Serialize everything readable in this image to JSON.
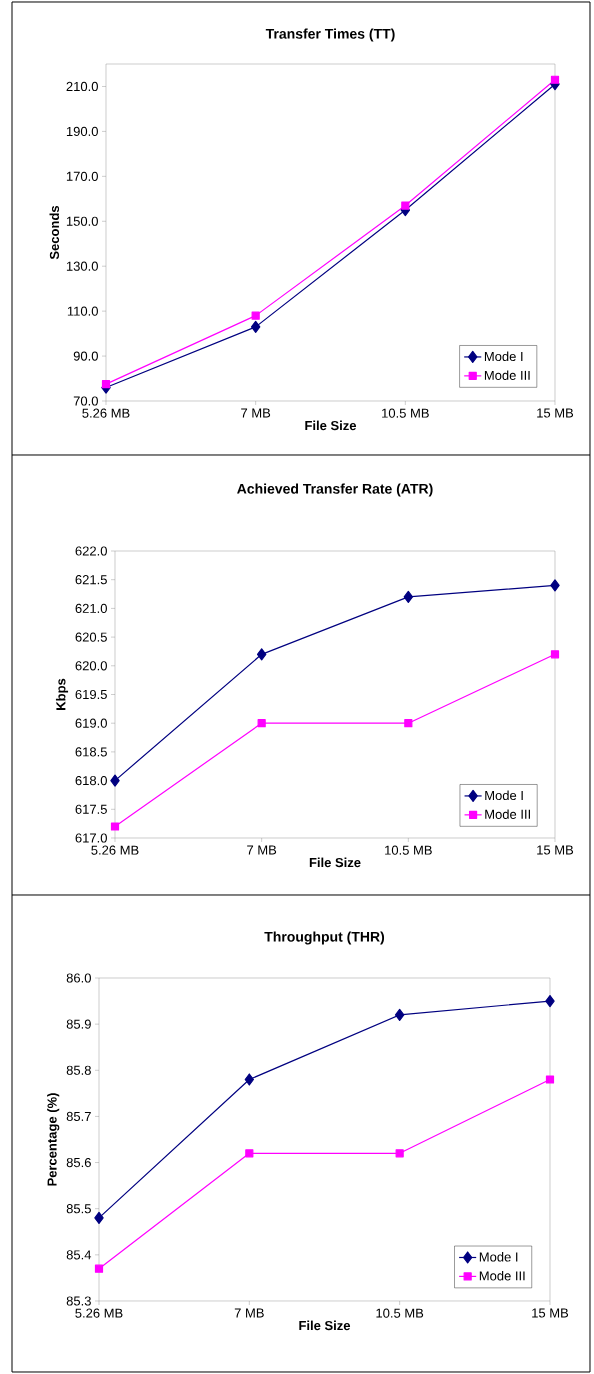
{
  "chart_data": [
    {
      "type": "line",
      "title": "Transfer Times (TT)",
      "xlabel": "File Size",
      "ylabel": "Seconds",
      "categories": [
        "5.26 MB",
        "7 MB",
        "10.5 MB",
        "15 MB"
      ],
      "ylim": [
        70,
        220
      ],
      "yticks": [
        {
          "value": 70,
          "label": "70.0"
        },
        {
          "value": 90,
          "label": "90.0"
        },
        {
          "value": 110,
          "label": "110.0"
        },
        {
          "value": 130,
          "label": "130.0"
        },
        {
          "value": 150,
          "label": "150.0"
        },
        {
          "value": 170,
          "label": "170.0"
        },
        {
          "value": 190,
          "label": "190.0"
        },
        {
          "value": 210,
          "label": "210.0"
        }
      ],
      "legend": "bottom right",
      "series": [
        {
          "name": "Mode I",
          "color": "#000080",
          "marker": "diamond",
          "values": [
            76,
            103,
            155,
            211
          ]
        },
        {
          "name": "Mode III",
          "color": "#ff00ff",
          "marker": "square",
          "values": [
            77.5,
            108,
            157,
            213
          ]
        }
      ]
    },
    {
      "type": "line",
      "title": "Achieved Transfer Rate (ATR)",
      "xlabel": "File Size",
      "ylabel": "Kbps",
      "categories": [
        "5.26 MB",
        "7 MB",
        "10.5 MB",
        "15 MB"
      ],
      "ylim": [
        617,
        622
      ],
      "yticks": [
        {
          "value": 617,
          "label": "617.0"
        },
        {
          "value": 617.5,
          "label": "617.5"
        },
        {
          "value": 618,
          "label": "618.0"
        },
        {
          "value": 618.5,
          "label": "618.5"
        },
        {
          "value": 619,
          "label": "619.0"
        },
        {
          "value": 619.5,
          "label": "619.5"
        },
        {
          "value": 620,
          "label": "620.0"
        },
        {
          "value": 620.5,
          "label": "620.5"
        },
        {
          "value": 621,
          "label": "621.0"
        },
        {
          "value": 621.5,
          "label": "621.5"
        },
        {
          "value": 622,
          "label": "622.0"
        }
      ],
      "legend": "bottom right",
      "series": [
        {
          "name": "Mode I",
          "color": "#000080",
          "marker": "diamond",
          "values": [
            618.0,
            620.2,
            621.2,
            621.4
          ]
        },
        {
          "name": "Mode III",
          "color": "#ff00ff",
          "marker": "square",
          "values": [
            617.2,
            619.0,
            619.0,
            620.2
          ]
        }
      ]
    },
    {
      "type": "line",
      "title": "Throughput (THR)",
      "xlabel": "File Size",
      "ylabel": "Percentage (%)",
      "categories": [
        "5.26 MB",
        "7 MB",
        "10.5 MB",
        "15 MB"
      ],
      "ylim": [
        85.3,
        86.0
      ],
      "yticks": [
        {
          "value": 85.3,
          "label": "85.3"
        },
        {
          "value": 85.4,
          "label": "85.4"
        },
        {
          "value": 85.5,
          "label": "85.5"
        },
        {
          "value": 85.6,
          "label": "85.6"
        },
        {
          "value": 85.7,
          "label": "85.7"
        },
        {
          "value": 85.8,
          "label": "85.8"
        },
        {
          "value": 85.9,
          "label": "85.9"
        },
        {
          "value": 86.0,
          "label": "86.0"
        }
      ],
      "legend": "bottom right",
      "series": [
        {
          "name": "Mode I",
          "color": "#000080",
          "marker": "diamond",
          "values": [
            85.48,
            85.78,
            85.92,
            85.95
          ]
        },
        {
          "name": "Mode III",
          "color": "#ff00ff",
          "marker": "square",
          "values": [
            85.37,
            85.62,
            85.62,
            85.78
          ]
        }
      ]
    }
  ]
}
